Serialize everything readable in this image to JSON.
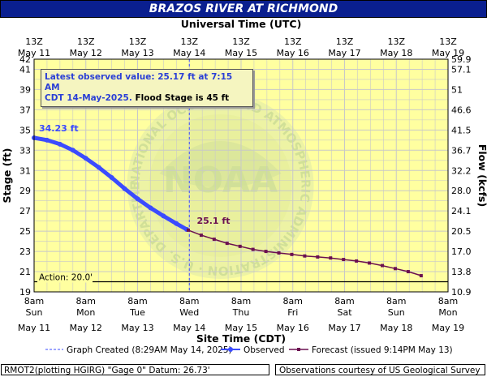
{
  "title": "BRAZOS RIVER AT RICHMOND",
  "top_axis_title": "Universal Time (UTC)",
  "bottom_axis_title": "Site Time (CDT)",
  "left_axis_title": "Stage (ft)",
  "right_axis_title": "Flow (kcfs)",
  "latest_box": {
    "line1": "Latest observed value: 25.17 ft at 7:15 AM",
    "line2_blue": "CDT 14-May-2025.",
    "line2_black": "Flood Stage is 45 ft"
  },
  "footer_left": "RMOT2(plotting HGIRG) \"Gage 0\" Datum: 26.73'",
  "footer_right": "Observations courtesy of US Geological Survey",
  "legend": {
    "created": "Graph Created (8:29AM May 14, 2025)",
    "observed": "Observed",
    "forecast": "Forecast (issued 9:14PM May 13)"
  },
  "watermark": "NOAA",
  "watermark_ring_text": "NATIONAL OCEANIC AND ATMOSPHERIC ADMINISTRATION · U.S. DEPARTMENT OF COMMERCE",
  "colors": {
    "plot_bg": "#ffffa0",
    "observed": "#3b4bff",
    "forecast": "#6b1050",
    "title_bg": "#0a1f8f",
    "grid": "#c8c8c8"
  },
  "chart_data": {
    "type": "line",
    "title": "BRAZOS RIVER AT RICHMOND",
    "xlabel": "Site Time (CDT)",
    "ylabel": "Stage (ft)",
    "y2label": "Flow (kcfs)",
    "ylim": [
      19,
      42
    ],
    "y_ticks": [
      19,
      21,
      23,
      25,
      27,
      29,
      31,
      33,
      35,
      37,
      39,
      41,
      42
    ],
    "y2_ticks": [
      "10.9",
      "13.8",
      "17.0",
      "20.5",
      "24.1",
      "28.0",
      "32.2",
      "36.7",
      "41.5",
      "46.6",
      "51",
      "57.1",
      "59.9"
    ],
    "x_range_days": [
      "May 11 8am",
      "May 19 8am"
    ],
    "bottom_ticks": [
      {
        "time": "8am",
        "day": "Sun",
        "date": "May 11"
      },
      {
        "time": "8am",
        "day": "Mon",
        "date": "May 12"
      },
      {
        "time": "8am",
        "day": "Tue",
        "date": "May 13"
      },
      {
        "time": "8am",
        "day": "Wed",
        "date": "May 14"
      },
      {
        "time": "8am",
        "day": "Thu",
        "date": "May 15"
      },
      {
        "time": "8am",
        "day": "Fri",
        "date": "May 16"
      },
      {
        "time": "8am",
        "day": "Sat",
        "date": "May 17"
      },
      {
        "time": "8am",
        "day": "Sun",
        "date": "May 18"
      },
      {
        "time": "8am",
        "day": "Mon",
        "date": "May 19"
      }
    ],
    "top_ticks": [
      {
        "time": "13Z",
        "date": "May 11"
      },
      {
        "time": "13Z",
        "date": "May 12"
      },
      {
        "time": "13Z",
        "date": "May 13"
      },
      {
        "time": "13Z",
        "date": "May 14"
      },
      {
        "time": "13Z",
        "date": "May 15"
      },
      {
        "time": "13Z",
        "date": "May 16"
      },
      {
        "time": "13Z",
        "date": "May 17"
      },
      {
        "time": "13Z",
        "date": "May 18"
      },
      {
        "time": "13Z",
        "date": "May 19"
      }
    ],
    "action_stage": {
      "value": 20.0,
      "label": "Action: 20.0'"
    },
    "graph_created_day": 3.0,
    "annotations": [
      {
        "label": "34.23 ft",
        "day": 0.0,
        "value": 34.23,
        "series": "Observed"
      },
      {
        "label": "25.1 ft",
        "day": 3.05,
        "value": 25.1,
        "series": "Forecast"
      }
    ],
    "series": [
      {
        "name": "Observed",
        "x_days": [
          0.0,
          0.25,
          0.5,
          0.75,
          1.0,
          1.25,
          1.5,
          1.75,
          2.0,
          2.25,
          2.5,
          2.75,
          2.95
        ],
        "values": [
          34.23,
          34.0,
          33.6,
          33.0,
          32.2,
          31.3,
          30.3,
          29.2,
          28.2,
          27.3,
          26.5,
          25.75,
          25.17
        ]
      },
      {
        "name": "Forecast",
        "x_days": [
          2.98,
          3.23,
          3.48,
          3.73,
          3.98,
          4.23,
          4.48,
          4.73,
          4.98,
          5.23,
          5.48,
          5.73,
          5.98,
          6.23,
          6.48,
          6.73,
          6.98,
          7.23,
          7.48
        ],
        "values": [
          25.1,
          24.6,
          24.2,
          23.8,
          23.5,
          23.2,
          23.0,
          22.85,
          22.7,
          22.55,
          22.45,
          22.35,
          22.2,
          22.05,
          21.85,
          21.6,
          21.3,
          21.0,
          20.6
        ]
      }
    ]
  }
}
